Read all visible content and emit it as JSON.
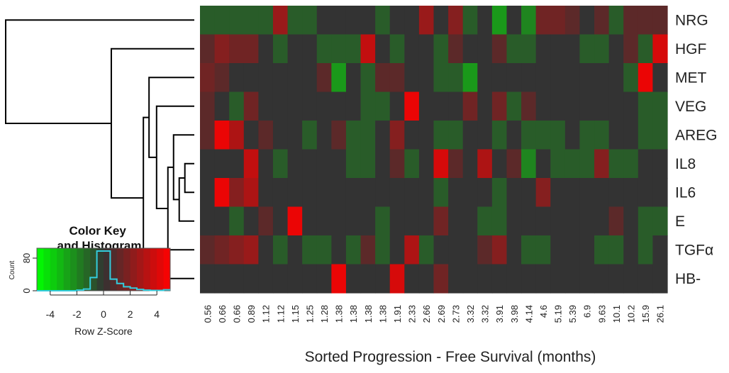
{
  "chart_data": {
    "type": "heatmap",
    "xlabel": "Sorted Progression - Free Survival (months)",
    "x": [
      "0.56",
      "0.66",
      "0.66",
      "0.89",
      "1.12",
      "1.12",
      "1.15",
      "1.25",
      "1.28",
      "1.38",
      "1.38",
      "1.38",
      "1.38",
      "1.91",
      "2.33",
      "2.66",
      "2.69",
      "2.73",
      "3.32",
      "3.32",
      "3.91",
      "3.98",
      "4.14",
      "4.6",
      "5.19",
      "5.39",
      "6.9",
      "9.63",
      "10.1",
      "10.2",
      "15.9",
      "26.1"
    ],
    "rows": [
      "NRG",
      "HGF",
      "MET",
      "VEG",
      "AREG",
      "IL8",
      "IL6",
      "E",
      "TGFα",
      "HB-"
    ],
    "values": [
      [
        -1,
        -1,
        -1,
        -1,
        -1,
        2.5,
        -1,
        -1,
        0,
        0,
        0,
        0,
        -1,
        0,
        0,
        2.5,
        0,
        2,
        -1,
        0,
        -2.5,
        0,
        -2,
        1.5,
        1.5,
        1,
        0,
        1,
        -1,
        1,
        1,
        1
      ],
      [
        1,
        2,
        1.5,
        1.5,
        0,
        -1,
        0,
        0,
        -1,
        -1,
        -1,
        3.5,
        0,
        -1,
        0,
        0,
        -1,
        1,
        0,
        0,
        1,
        -1,
        -1,
        0,
        0,
        0,
        -1,
        -1,
        0,
        1,
        -1,
        4
      ],
      [
        1.5,
        1,
        0,
        0,
        0,
        0,
        0,
        0,
        1,
        -2.5,
        0,
        -1,
        1,
        1,
        0,
        0,
        -1,
        -1,
        -2.5,
        0,
        0,
        0,
        0,
        0,
        0,
        0,
        0,
        0,
        0,
        -1,
        4.5,
        0
      ],
      [
        1,
        0,
        -1,
        1.5,
        0,
        0,
        0,
        0,
        0,
        0,
        0,
        -1,
        -1,
        0,
        4.5,
        0,
        0,
        0,
        1.5,
        0,
        1.5,
        -1,
        1,
        0,
        0,
        0,
        0,
        0,
        0,
        0,
        -1,
        -1
      ],
      [
        1,
        4.5,
        3,
        0,
        1,
        0,
        0,
        -1,
        0,
        1,
        -1,
        -1,
        0,
        2,
        0,
        0,
        -1,
        -1,
        0,
        0,
        -1,
        0,
        -1,
        -1,
        -1,
        0,
        -1,
        -1,
        0,
        0,
        -1,
        -1
      ],
      [
        0,
        0,
        0,
        3.5,
        0,
        -1,
        0,
        0,
        0,
        0,
        -1,
        -1,
        0,
        1,
        -1,
        0,
        4,
        1,
        0,
        3,
        0,
        1,
        -2,
        0,
        -1,
        -1,
        -1,
        2,
        -1,
        -1,
        0,
        0
      ],
      [
        0,
        4.5,
        2,
        3,
        0,
        0,
        0,
        0,
        0,
        0,
        0,
        0,
        0,
        0,
        0,
        0,
        -1,
        0,
        0,
        0,
        -1,
        0,
        0,
        2,
        0,
        0,
        0,
        0,
        0,
        0,
        0,
        0
      ],
      [
        0,
        0,
        -1,
        0,
        1,
        0,
        4.5,
        0,
        0,
        0,
        0,
        0,
        -1,
        0,
        0,
        0,
        1.5,
        0,
        0,
        -1,
        -1,
        0,
        0,
        0,
        0,
        0,
        0,
        0,
        1,
        0,
        -1,
        -1
      ],
      [
        1,
        1.5,
        2,
        2.5,
        0,
        -1,
        0,
        -1,
        -1,
        0,
        -1,
        1,
        -1,
        0,
        3,
        -1,
        0,
        0,
        0,
        1,
        2,
        0,
        -1,
        -1,
        0,
        0,
        0,
        -1,
        -1,
        0,
        -1,
        0
      ],
      [
        0,
        0,
        0,
        0,
        0,
        0,
        0,
        0,
        0,
        4.5,
        0,
        0,
        0,
        4,
        0,
        0,
        1.5,
        0,
        0,
        0,
        0,
        0,
        0,
        0,
        0,
        0,
        0,
        0,
        0,
        0,
        0,
        0
      ]
    ],
    "color_key": {
      "title": "Color Key and Histogram",
      "xlabel": "Row Z-Score",
      "ylabel": "Count",
      "range": [
        -5,
        5
      ],
      "ticks": [
        "-4",
        "-2",
        "0",
        "2",
        "4"
      ],
      "count_ticks": [
        "0",
        "80"
      ],
      "histogram": {
        "bin_edges": [
          -5,
          -4.5,
          -4,
          -3.5,
          -3,
          -2.5,
          -2,
          -1.5,
          -1,
          -0.5,
          0,
          0.5,
          1,
          1.5,
          2,
          2.5,
          3,
          3.5,
          4,
          4.5,
          5
        ],
        "counts": [
          0,
          0,
          0,
          0,
          0,
          0,
          2,
          5,
          40,
          120,
          120,
          35,
          22,
          12,
          8,
          4,
          2,
          1,
          1,
          3
        ]
      },
      "low_color": "#00ff00",
      "mid_color": "#333333",
      "high_color": "#ff0000",
      "line_color": "#33ccdd"
    },
    "dendrogram": {
      "side": "left",
      "leaves": [
        "NRG",
        "HGF",
        "MET",
        "VEG",
        "AREG",
        "IL8",
        "IL6",
        "E",
        "TGFα",
        "HB-"
      ],
      "merges": [
        {
          "left": [
            "IL8"
          ],
          "right": [
            "IL6"
          ],
          "height": 0.05
        },
        {
          "left": [
            "IL8",
            "IL6"
          ],
          "right": [
            "E"
          ],
          "height": 0.08
        },
        {
          "left": [
            "AREG"
          ],
          "right": [
            "IL8",
            "IL6",
            "E"
          ],
          "height": 0.11
        },
        {
          "left": [
            "AREG",
            "IL8",
            "IL6",
            "E"
          ],
          "right": [
            "TGFα"
          ],
          "height": 0.14
        },
        {
          "left": [
            "VEG"
          ],
          "right": [
            "AREG",
            "IL8",
            "IL6",
            "E",
            "TGFα"
          ],
          "height": 0.2
        },
        {
          "left": [
            "MET"
          ],
          "right": [
            "VEG",
            "AREG",
            "IL8",
            "IL6",
            "E",
            "TGFα"
          ],
          "height": 0.24
        },
        {
          "left": [
            "MET",
            "VEG",
            "AREG",
            "IL8",
            "IL6",
            "E",
            "TGFα"
          ],
          "right": [
            "HB-"
          ],
          "height": 0.27
        },
        {
          "left": [
            "HGF"
          ],
          "right": [
            "MET",
            "VEG",
            "AREG",
            "IL8",
            "IL6",
            "E",
            "TGFα",
            "HB-"
          ],
          "height": 0.44
        },
        {
          "left": [
            "NRG"
          ],
          "right": [
            "HGF",
            "MET",
            "VEG",
            "AREG",
            "IL8",
            "IL6",
            "E",
            "TGFα",
            "HB-"
          ],
          "height": 1.0
        }
      ]
    }
  }
}
